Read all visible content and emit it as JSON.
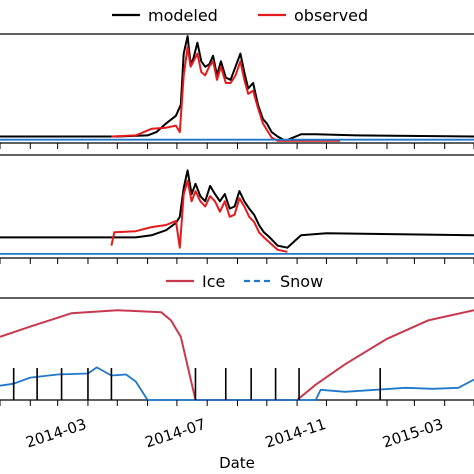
{
  "chart_data": [
    {
      "type": "line",
      "panel": "top",
      "legend": {
        "placement": "top-center",
        "entries": [
          "modeled",
          "observed"
        ]
      },
      "x_start": "2014-01-01",
      "xlim": [
        "2014-01-01",
        "2015-05-01"
      ],
      "ylim": [
        0,
        1
      ],
      "series": [
        {
          "name": "modeled",
          "color": "#000000",
          "x": [
            "2014-01-01",
            "2014-05-01",
            "2014-06-01",
            "2014-06-10",
            "2014-06-20",
            "2014-06-30",
            "2014-07-05",
            "2014-07-08",
            "2014-07-12",
            "2014-07-15",
            "2014-07-18",
            "2014-07-22",
            "2014-07-26",
            "2014-07-30",
            "2014-08-03",
            "2014-08-07",
            "2014-08-11",
            "2014-08-15",
            "2014-08-20",
            "2014-08-25",
            "2014-08-30",
            "2014-09-04",
            "2014-09-08",
            "2014-09-12",
            "2014-09-17",
            "2014-09-22",
            "2014-09-27",
            "2014-10-01",
            "2014-10-06",
            "2014-10-12",
            "2014-10-20",
            "2014-11-05",
            "2014-11-20",
            "2015-01-01",
            "2015-05-01"
          ],
          "y": [
            0.06,
            0.06,
            0.07,
            0.1,
            0.18,
            0.25,
            0.35,
            0.82,
            0.98,
            0.72,
            0.78,
            0.92,
            0.75,
            0.7,
            0.72,
            0.8,
            0.62,
            0.75,
            0.6,
            0.58,
            0.7,
            0.82,
            0.65,
            0.5,
            0.55,
            0.35,
            0.22,
            0.18,
            0.1,
            0.06,
            0.02,
            0.08,
            0.08,
            0.07,
            0.06
          ]
        },
        {
          "name": "observed",
          "color": "#e41a1c",
          "x": [
            "2014-04-25",
            "2014-05-20",
            "2014-06-05",
            "2014-06-20",
            "2014-06-30",
            "2014-07-04",
            "2014-07-08",
            "2014-07-12",
            "2014-07-15",
            "2014-07-18",
            "2014-07-22",
            "2014-07-26",
            "2014-07-30",
            "2014-08-03",
            "2014-08-07",
            "2014-08-11",
            "2014-08-15",
            "2014-08-20",
            "2014-08-25",
            "2014-08-30",
            "2014-09-04",
            "2014-09-08",
            "2014-09-12",
            "2014-09-17",
            "2014-09-22",
            "2014-09-27",
            "2014-10-01",
            "2014-10-06",
            "2014-10-12",
            "2014-11-01",
            "2014-12-15"
          ],
          "y": [
            0.06,
            0.07,
            0.13,
            0.14,
            0.16,
            0.1,
            0.62,
            0.88,
            0.7,
            0.75,
            0.82,
            0.65,
            0.62,
            0.7,
            0.75,
            0.58,
            0.7,
            0.55,
            0.55,
            0.62,
            0.75,
            0.58,
            0.45,
            0.48,
            0.32,
            0.18,
            0.12,
            0.05,
            0.02,
            0.02,
            0.02
          ]
        },
        {
          "name": "",
          "color": "#1f78c8",
          "x": [
            "2014-01-01",
            "2015-05-01"
          ],
          "y": [
            0.03,
            0.03
          ]
        }
      ]
    },
    {
      "type": "line",
      "panel": "middle",
      "x_start": "2014-01-01",
      "xlim": [
        "2014-01-01",
        "2015-05-01"
      ],
      "ylim": [
        0,
        1
      ],
      "series": [
        {
          "name": "modeled",
          "color": "#000000",
          "x": [
            "2014-01-01",
            "2014-05-01",
            "2014-05-20",
            "2014-06-05",
            "2014-06-20",
            "2014-06-30",
            "2014-07-04",
            "2014-07-08",
            "2014-07-12",
            "2014-07-16",
            "2014-07-20",
            "2014-07-25",
            "2014-07-30",
            "2014-08-04",
            "2014-08-09",
            "2014-08-14",
            "2014-08-19",
            "2014-08-24",
            "2014-08-29",
            "2014-09-03",
            "2014-09-08",
            "2014-09-13",
            "2014-09-18",
            "2014-09-23",
            "2014-09-28",
            "2014-10-04",
            "2014-10-12",
            "2014-10-22",
            "2014-11-05",
            "2014-12-01",
            "2015-05-01"
          ],
          "y": [
            0.2,
            0.2,
            0.2,
            0.22,
            0.27,
            0.34,
            0.4,
            0.68,
            0.85,
            0.62,
            0.72,
            0.6,
            0.55,
            0.7,
            0.62,
            0.55,
            0.62,
            0.48,
            0.5,
            0.65,
            0.55,
            0.48,
            0.42,
            0.32,
            0.25,
            0.2,
            0.12,
            0.1,
            0.22,
            0.24,
            0.22
          ]
        },
        {
          "name": "observed",
          "color": "#e41a1c",
          "x": [
            "2014-04-25",
            "2014-04-28",
            "2014-05-20",
            "2014-06-05",
            "2014-06-20",
            "2014-06-30",
            "2014-07-04",
            "2014-07-08",
            "2014-07-12",
            "2014-07-16",
            "2014-07-20",
            "2014-07-25",
            "2014-07-30",
            "2014-08-04",
            "2014-08-09",
            "2014-08-14",
            "2014-08-19",
            "2014-08-24",
            "2014-08-29",
            "2014-09-03",
            "2014-09-08",
            "2014-09-13",
            "2014-09-18",
            "2014-09-23",
            "2014-09-28",
            "2014-10-04",
            "2014-10-12",
            "2014-10-22"
          ],
          "y": [
            0.12,
            0.25,
            0.26,
            0.3,
            0.32,
            0.36,
            0.1,
            0.62,
            0.75,
            0.55,
            0.65,
            0.55,
            0.5,
            0.6,
            0.55,
            0.45,
            0.55,
            0.4,
            0.42,
            0.58,
            0.5,
            0.4,
            0.35,
            0.25,
            0.2,
            0.15,
            0.08,
            0.06
          ]
        },
        {
          "name": "",
          "color": "#1f78c8",
          "x": [
            "2014-01-01",
            "2015-05-01"
          ],
          "y": [
            0.04,
            0.04
          ]
        }
      ]
    },
    {
      "type": "line",
      "panel": "bottom",
      "legend": {
        "placement": "top-center",
        "entries": [
          "Ice",
          "Snow"
        ]
      },
      "xlabel": "Date",
      "x_start": "2014-01-01",
      "xlim": [
        "2014-01-01",
        "2015-05-01"
      ],
      "ylim": [
        0,
        1
      ],
      "xticks": [
        "2014-03-01",
        "2014-07-01",
        "2014-11-01",
        "2015-03-01"
      ],
      "xtick_labels": [
        "2014-03",
        "2014-07",
        "2014-11",
        "2015-03"
      ],
      "series": [
        {
          "name": "Ice",
          "color": "#c8384e",
          "dash": "solid",
          "x": [
            "2014-01-01",
            "2014-02-01",
            "2014-03-15",
            "2014-05-01",
            "2014-06-15",
            "2014-06-25",
            "2014-07-05",
            "2014-07-20",
            "2014-11-01",
            "2014-11-20",
            "2014-12-20",
            "2015-02-01",
            "2015-03-15",
            "2015-05-01"
          ],
          "y": [
            0.62,
            0.72,
            0.85,
            0.88,
            0.86,
            0.78,
            0.62,
            0.0,
            0.0,
            0.15,
            0.35,
            0.6,
            0.78,
            0.88
          ]
        },
        {
          "name": "Snow",
          "color": "#1f78c8",
          "dash": "dashed",
          "x": [
            "2014-01-01",
            "2014-01-15",
            "2014-02-01",
            "2014-03-01",
            "2014-04-01",
            "2014-04-10",
            "2014-04-25",
            "2014-05-10",
            "2014-05-20",
            "2014-06-01",
            "2014-11-20",
            "2014-11-25",
            "2014-12-20",
            "2015-01-20",
            "2015-02-20",
            "2015-03-20",
            "2015-04-15",
            "2015-05-01"
          ],
          "y": [
            0.14,
            0.16,
            0.22,
            0.25,
            0.26,
            0.32,
            0.24,
            0.25,
            0.18,
            0.0,
            0.0,
            0.1,
            0.08,
            0.1,
            0.12,
            0.11,
            0.12,
            0.2
          ]
        }
      ],
      "observation_ticks": [
        "2014-01-15",
        "2014-02-08",
        "2014-03-05",
        "2014-04-01",
        "2014-04-25",
        "2014-07-20",
        "2014-08-20",
        "2014-09-15",
        "2014-10-10",
        "2014-11-03",
        "2015-01-25"
      ]
    }
  ]
}
